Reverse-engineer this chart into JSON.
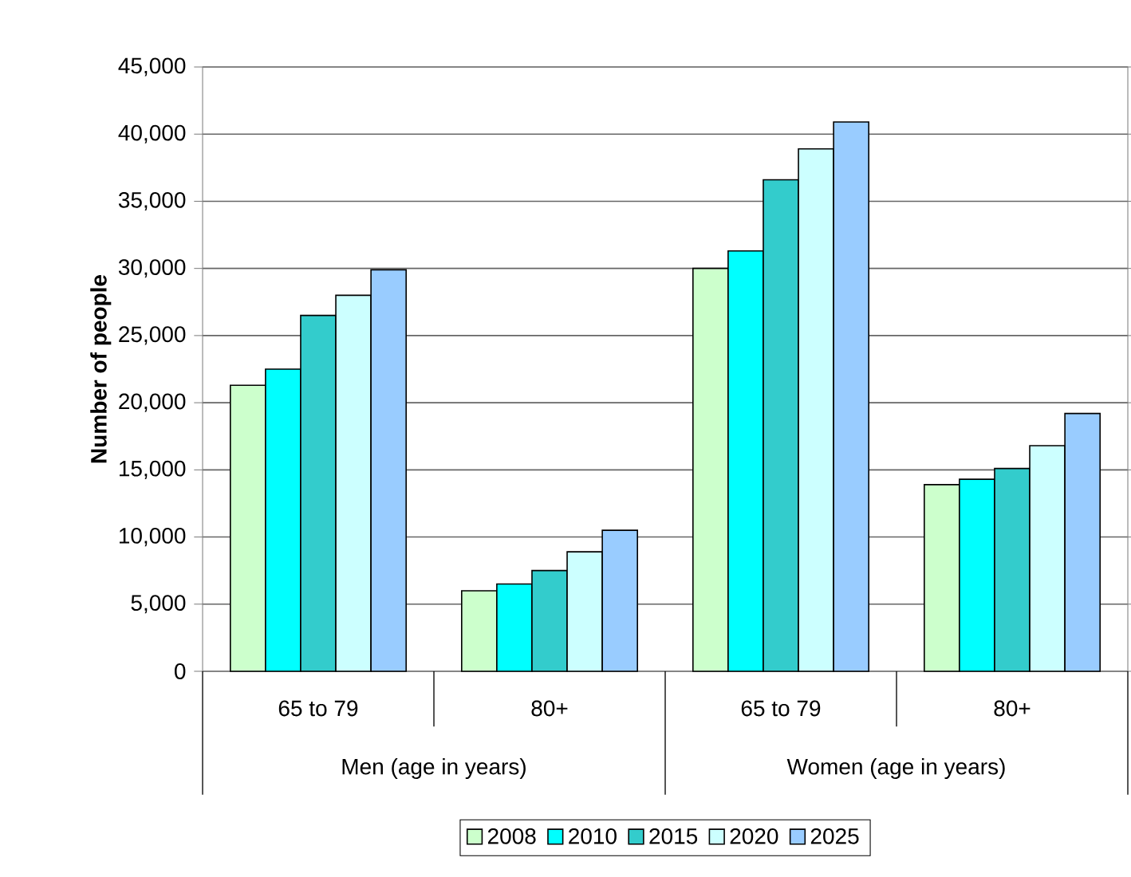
{
  "chart_data": {
    "type": "bar",
    "ylabel": "Number of people",
    "categories": [
      "65 to 79",
      "80+",
      "65 to 79",
      "80+"
    ],
    "annotations": [
      "Men (age in years)",
      "Women (age in years)"
    ],
    "series": [
      {
        "name": "2008",
        "color": "#ccffcc",
        "values": [
          21300,
          6000,
          30000,
          13900
        ]
      },
      {
        "name": "2010",
        "color": "#00ffff",
        "values": [
          22500,
          6500,
          31300,
          14300
        ]
      },
      {
        "name": "2015",
        "color": "#33cccc",
        "values": [
          26500,
          7500,
          36600,
          15100
        ]
      },
      {
        "name": "2020",
        "color": "#ccffff",
        "values": [
          28000,
          8900,
          38900,
          16800
        ]
      },
      {
        "name": "2025",
        "color": "#99ccff",
        "values": [
          29900,
          10500,
          40900,
          19200
        ]
      }
    ],
    "ylim": [
      0,
      45000
    ],
    "yticks": [
      0,
      {
        "value": 5000,
        "label": "5,000"
      },
      {
        "value": 10000,
        "label": "10,000"
      },
      {
        "value": 15000,
        "label": "15,000"
      },
      {
        "value": 20000,
        "label": "20,000"
      },
      {
        "value": 25000,
        "label": "25,000"
      },
      {
        "value": 30000,
        "label": "30,000"
      },
      {
        "value": 35000,
        "label": "35,000"
      },
      {
        "value": 40000,
        "label": "40,000"
      },
      {
        "value": 45000,
        "label": "45,000"
      }
    ],
    "grid": "y",
    "legend": "bottom"
  }
}
